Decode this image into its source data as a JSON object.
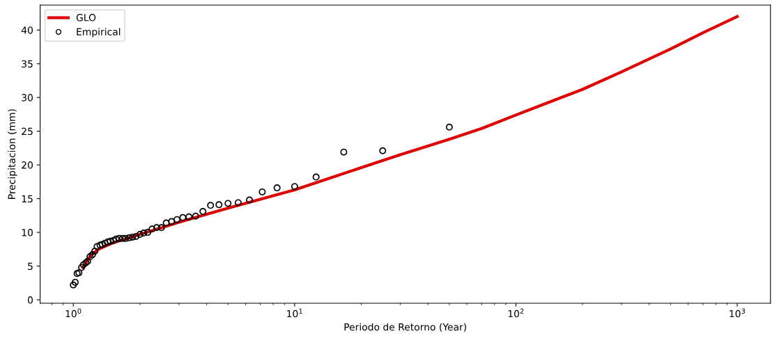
{
  "chart_data": {
    "type": "line",
    "xlabel": "Periodo de Retorno (Year)",
    "ylabel": "Precipitacion (mm)",
    "log": "x",
    "grid": false,
    "legend": "top left",
    "xlim": [
      0.708,
      1413
    ],
    "ylim": [
      -0.5,
      43.7
    ],
    "xticks": [
      {
        "value": 1,
        "label": "10$^{0}$"
      },
      {
        "value": 10,
        "label": "10$^{1}$"
      },
      {
        "value": 100,
        "label": "10$^{2}$"
      },
      {
        "value": 1000,
        "label": "10$^{3}$"
      }
    ],
    "yticks": [
      0,
      5,
      10,
      15,
      20,
      25,
      30,
      35,
      40
    ],
    "series": [
      {
        "name": "GLO",
        "color": "#e00000",
        "marker": "none",
        "line_style": "solid",
        "x": [
          1.106,
          1.2,
          1.3,
          1.5,
          2,
          3,
          5,
          10,
          20,
          30,
          50,
          70,
          100,
          200,
          300,
          500,
          700,
          1000
        ],
        "values": [
          4.8,
          6.6,
          7.5,
          8.4,
          9.7,
          11.5,
          13.6,
          16.3,
          19.6,
          21.5,
          23.8,
          25.4,
          27.4,
          31.2,
          33.8,
          37.2,
          39.6,
          42.0
        ]
      },
      {
        "name": "Empirical",
        "type": "scatter",
        "color": "#000000",
        "marker": "circle",
        "x": [
          50,
          25,
          16.67,
          12.5,
          10,
          8.33,
          7.14,
          6.25,
          5.56,
          5,
          4.55,
          4.17,
          3.85,
          3.57,
          3.33,
          3.125,
          2.94,
          2.78,
          2.63,
          2.5,
          2.38,
          2.27,
          2.17,
          2.08,
          2.0,
          1.92,
          1.85,
          1.79,
          1.72,
          1.67,
          1.61,
          1.56,
          1.52,
          1.47,
          1.43,
          1.39,
          1.35,
          1.32,
          1.28,
          1.25,
          1.22,
          1.19,
          1.16,
          1.14,
          1.11,
          1.09,
          1.06,
          1.04,
          1.02,
          1.0
        ],
        "values": [
          25.6,
          22.1,
          21.9,
          18.2,
          16.8,
          16.6,
          16.0,
          14.8,
          14.4,
          14.3,
          14.1,
          14.0,
          13.1,
          12.4,
          12.3,
          12.2,
          11.9,
          11.6,
          11.4,
          10.7,
          10.7,
          10.5,
          10.0,
          9.9,
          9.7,
          9.4,
          9.3,
          9.2,
          9.1,
          9.1,
          9.1,
          9.0,
          8.8,
          8.7,
          8.6,
          8.4,
          8.2,
          8.1,
          7.9,
          7.2,
          6.7,
          6.4,
          5.7,
          5.5,
          5.2,
          4.8,
          4.0,
          3.9,
          2.6,
          2.2
        ]
      }
    ]
  }
}
